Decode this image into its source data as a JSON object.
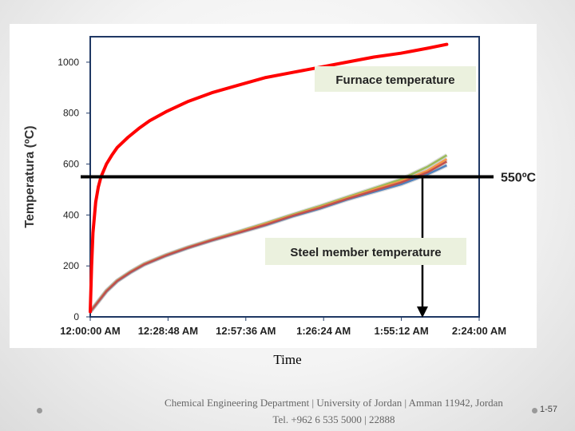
{
  "chart_data": {
    "type": "line",
    "title": "",
    "xlabel": "Time",
    "ylabel": "Temperatura (ºC)",
    "x_ticks": [
      "12:00:00 AM",
      "12:28:48 AM",
      "12:57:36 AM",
      "1:26:24 AM",
      "1:55:12 AM",
      "2:24:00 AM"
    ],
    "x_unit": "minutes",
    "xlim": [
      0,
      144
    ],
    "y_ticks": [
      "0",
      "200",
      "400",
      "600",
      "800",
      "1000"
    ],
    "ylim": [
      0,
      1100
    ],
    "furnace": {
      "label": "Furnace temperature",
      "color": "#ff0000",
      "x": [
        0,
        0.5,
        1,
        2,
        3,
        4,
        6,
        8,
        10,
        14,
        18,
        22,
        28,
        36,
        45,
        55,
        65,
        75,
        85,
        95,
        105,
        115,
        125,
        132
      ],
      "y": [
        20,
        200,
        330,
        450,
        510,
        550,
        600,
        635,
        665,
        705,
        740,
        770,
        805,
        845,
        880,
        910,
        940,
        960,
        980,
        1000,
        1020,
        1035,
        1055,
        1070
      ]
    },
    "steel": {
      "label": "Steel member temperature",
      "series": [
        {
          "name": "steel-1",
          "color": "#4f81bd",
          "x": [
            0,
            3,
            6,
            10,
            15,
            20,
            28,
            36,
            45,
            55,
            65,
            75,
            85,
            95,
            105,
            115,
            125,
            132
          ],
          "y": [
            20,
            60,
            100,
            140,
            175,
            205,
            240,
            270,
            300,
            330,
            360,
            395,
            425,
            460,
            490,
            520,
            560,
            595
          ]
        },
        {
          "name": "steel-2",
          "color": "#9bbb59",
          "x": [
            0,
            3,
            6,
            10,
            15,
            20,
            28,
            36,
            45,
            55,
            65,
            75,
            85,
            95,
            105,
            115,
            125,
            132
          ],
          "y": [
            20,
            62,
            103,
            143,
            178,
            208,
            243,
            273,
            303,
            335,
            368,
            402,
            435,
            470,
            505,
            540,
            590,
            635
          ]
        },
        {
          "name": "steel-3",
          "color": "#f79646",
          "x": [
            0,
            3,
            6,
            10,
            15,
            20,
            28,
            36,
            45,
            55,
            65,
            75,
            85,
            95,
            105,
            115,
            125,
            132
          ],
          "y": [
            20,
            61,
            102,
            142,
            177,
            207,
            242,
            272,
            302,
            333,
            365,
            399,
            431,
            466,
            500,
            532,
            575,
            620
          ]
        },
        {
          "name": "steel-4",
          "color": "#c0504d",
          "x": [
            0,
            3,
            6,
            10,
            15,
            20,
            28,
            36,
            45,
            55,
            65,
            75,
            85,
            95,
            105,
            115,
            125,
            132
          ],
          "y": [
            20,
            60,
            101,
            141,
            176,
            206,
            241,
            271,
            301,
            331,
            362,
            397,
            428,
            463,
            495,
            527,
            568,
            610
          ]
        }
      ]
    },
    "critical_line": {
      "value": 550,
      "label": "550ºC"
    },
    "arrow": {
      "x": 123,
      "from": 550,
      "to": 0
    }
  },
  "footer": {
    "line1": "Chemical Engineering Department | University of Jordan | Amman 11942, Jordan",
    "line2": "Tel. +962 6 535 5000 | 22888"
  },
  "page_number": "1-57"
}
